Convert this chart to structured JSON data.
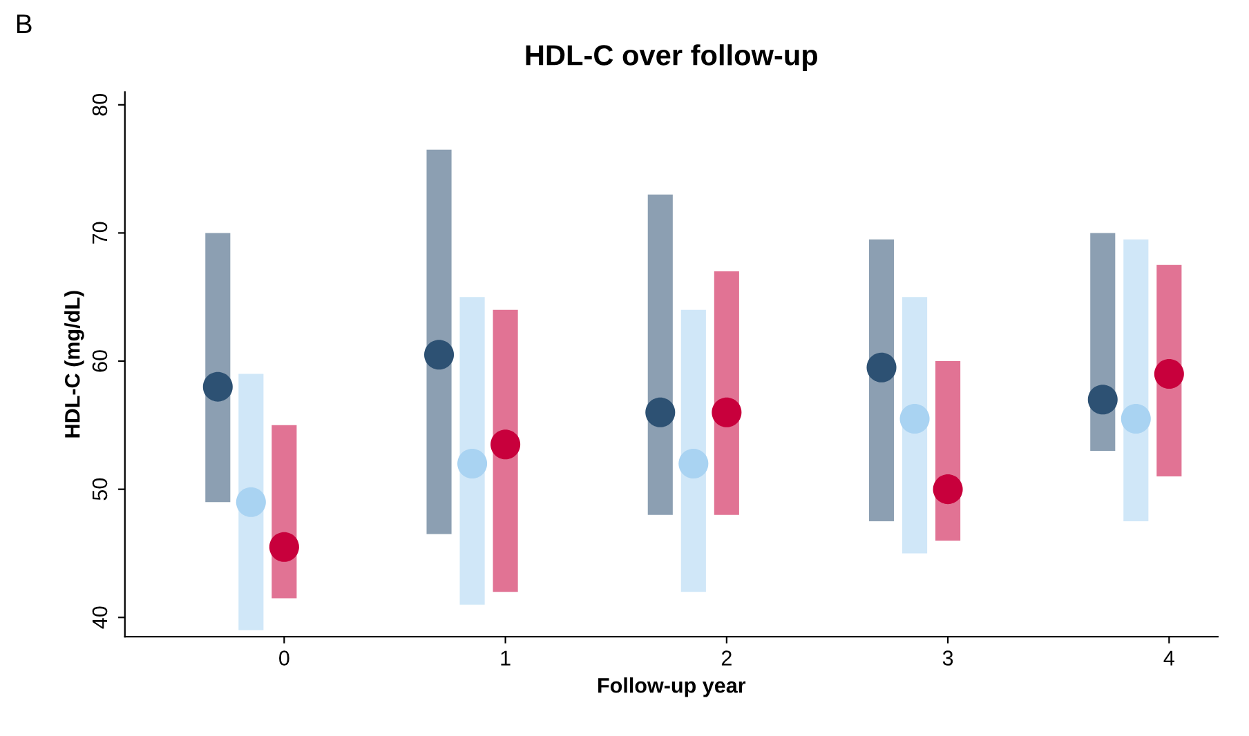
{
  "chart_data": {
    "type": "scatter",
    "title": "HDL-C over follow-up",
    "xlabel": "Follow-up year",
    "ylabel": "HDL-C (mg/dL)",
    "annotations": [
      "B"
    ],
    "categories": [
      "0",
      "1",
      "2",
      "3",
      "4"
    ],
    "ylim": [
      38.5,
      81
    ],
    "yticks": [
      40,
      50,
      60,
      70,
      80
    ],
    "grid": false,
    "legend": false,
    "marker": "circle",
    "series": [
      {
        "color": "#2d5173",
        "values": [
          58,
          60.5,
          56,
          59.5,
          57
        ],
        "errors": [
          [
            49,
            70
          ],
          [
            46.5,
            76.5
          ],
          [
            48,
            73
          ],
          [
            47.5,
            69.5
          ],
          [
            53,
            70
          ]
        ]
      },
      {
        "color": "#a9d3f2",
        "values": [
          49,
          52,
          52,
          55.5,
          55.5
        ],
        "errors": [
          [
            39,
            59
          ],
          [
            41,
            65
          ],
          [
            42,
            64
          ],
          [
            45,
            65
          ],
          [
            47.5,
            69.5
          ]
        ]
      },
      {
        "color": "#c8003c",
        "values": [
          45.5,
          53.5,
          56,
          50,
          59
        ],
        "errors": [
          [
            41.5,
            55
          ],
          [
            42,
            64
          ],
          [
            48,
            67
          ],
          [
            46,
            60
          ],
          [
            51,
            67.5
          ]
        ]
      }
    ]
  }
}
